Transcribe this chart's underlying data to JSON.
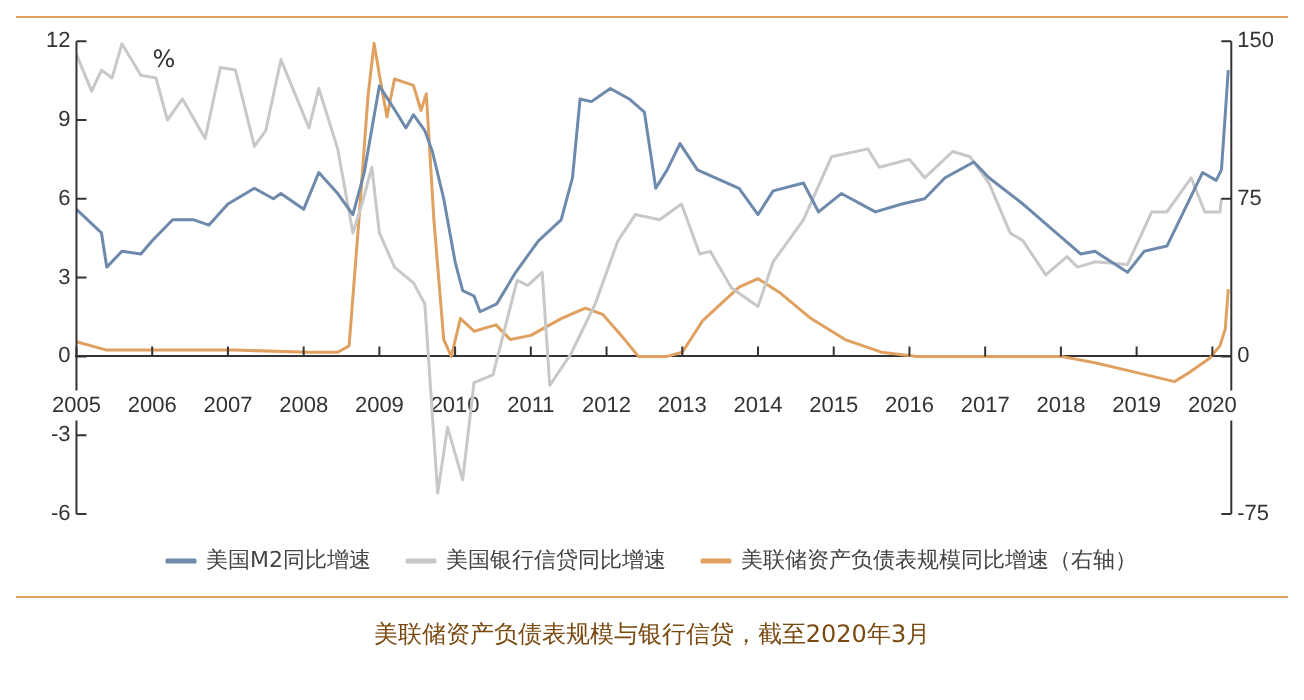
{
  "chart_data": {
    "type": "line",
    "ylabel": "%",
    "annotations": [
      "美联储资产负债表规模与银行信贷，截至2020年3月"
    ],
    "xlim": [
      2005,
      2020.25
    ],
    "xticks": [
      2005,
      2006,
      2007,
      2008,
      2009,
      2010,
      2011,
      2012,
      2013,
      2014,
      2015,
      2016,
      2017,
      2018,
      2019,
      2020
    ],
    "ylim": [
      -6,
      12
    ],
    "yticks": [
      -6,
      -3,
      0,
      3,
      6,
      9,
      12
    ],
    "y2lim": [
      -75,
      150
    ],
    "y2ticks": [
      -75,
      0,
      75,
      150
    ],
    "grid": false,
    "legend": "bottom",
    "marker": "none",
    "line_style": "solid",
    "series": [
      {
        "name": "美国M2同比增速",
        "color": "#6d89ab",
        "x": [
          2005.0,
          2005.33,
          2005.4,
          2005.6,
          2005.85,
          2006.0,
          2006.27,
          2006.55,
          2006.75,
          2007.0,
          2007.35,
          2007.6,
          2007.7,
          2008.0,
          2008.2,
          2008.45,
          2008.65,
          2008.8,
          2009.0,
          2009.2,
          2009.35,
          2009.45,
          2009.6,
          2009.7,
          2009.85,
          2010.0,
          2010.1,
          2010.25,
          2010.33,
          2010.55,
          2010.8,
          2011.1,
          2011.4,
          2011.55,
          2011.65,
          2011.8,
          2012.05,
          2012.3,
          2012.5,
          2012.65,
          2012.8,
          2012.97,
          2013.2,
          2013.75,
          2014.0,
          2014.2,
          2014.6,
          2014.8,
          2015.1,
          2015.55,
          2015.9,
          2016.2,
          2016.47,
          2016.85,
          2017.05,
          2017.5,
          2017.9,
          2018.26,
          2018.45,
          2018.88,
          2019.1,
          2019.4,
          2019.87,
          2020.05,
          2020.12,
          2020.21
        ],
        "values": [
          5.6,
          4.7,
          3.4,
          4.0,
          3.9,
          4.4,
          5.2,
          5.2,
          5.0,
          5.8,
          6.4,
          6.0,
          6.2,
          5.6,
          7.0,
          6.2,
          5.4,
          7.0,
          10.3,
          9.4,
          8.7,
          9.2,
          8.6,
          7.8,
          6.0,
          3.6,
          2.5,
          2.3,
          1.7,
          2.0,
          3.2,
          4.4,
          5.2,
          6.8,
          9.8,
          9.7,
          10.2,
          9.8,
          9.3,
          6.4,
          7.1,
          8.1,
          7.1,
          6.4,
          5.4,
          6.3,
          6.6,
          5.5,
          6.2,
          5.5,
          5.8,
          6.0,
          6.8,
          7.4,
          6.8,
          5.8,
          4.8,
          3.9,
          4.0,
          3.2,
          4.0,
          4.2,
          7.0,
          6.7,
          7.1,
          10.9
        ]
      },
      {
        "name": "美国银行信贷同比增速",
        "color": "#c8c8c8",
        "x": [
          2005.0,
          2005.2,
          2005.33,
          2005.47,
          2005.6,
          2005.85,
          2006.05,
          2006.2,
          2006.4,
          2006.7,
          2006.9,
          2007.1,
          2007.35,
          2007.5,
          2007.7,
          2008.07,
          2008.2,
          2008.45,
          2008.65,
          2008.77,
          2008.9,
          2009.0,
          2009.2,
          2009.45,
          2009.6,
          2009.77,
          2009.9,
          2010.1,
          2010.25,
          2010.5,
          2010.82,
          2010.96,
          2011.15,
          2011.25,
          2011.53,
          2011.85,
          2012.15,
          2012.38,
          2012.7,
          2012.99,
          2013.23,
          2013.37,
          2013.65,
          2014.0,
          2014.2,
          2014.6,
          2014.97,
          2015.45,
          2015.6,
          2016.0,
          2016.2,
          2016.57,
          2016.8,
          2017.05,
          2017.33,
          2017.5,
          2017.8,
          2018.08,
          2018.22,
          2018.45,
          2018.88,
          2019.2,
          2019.4,
          2019.72,
          2019.9,
          2020.1,
          2020.12
        ],
        "values": [
          11.5,
          10.1,
          10.9,
          10.6,
          11.9,
          10.7,
          10.6,
          9.0,
          9.8,
          8.3,
          11.0,
          10.9,
          8.0,
          8.6,
          11.3,
          8.7,
          10.2,
          7.9,
          4.7,
          5.8,
          7.2,
          4.7,
          3.4,
          2.8,
          2.0,
          -5.2,
          -2.7,
          -4.7,
          -1.0,
          -0.7,
          2.9,
          2.7,
          3.2,
          -1.1,
          0.1,
          2.0,
          4.4,
          5.4,
          5.2,
          5.8,
          3.9,
          4.0,
          2.6,
          1.9,
          3.6,
          5.2,
          7.6,
          7.9,
          7.2,
          7.5,
          6.8,
          7.8,
          7.6,
          6.6,
          4.7,
          4.4,
          3.1,
          3.8,
          3.4,
          3.6,
          3.5,
          5.5,
          5.5,
          6.8,
          5.5,
          5.5,
          6.0
        ]
      },
      {
        "name": "美联储资产负债表规模同比增速（右轴）",
        "color": "#e0a060",
        "axis": "y2",
        "x": [
          2005.0,
          2005.4,
          2006.2,
          2007.1,
          2008.07,
          2008.45,
          2008.6,
          2008.73,
          2008.85,
          2008.93,
          2009.0,
          2009.1,
          2009.2,
          2009.45,
          2009.55,
          2009.62,
          2009.72,
          2009.85,
          2009.95,
          2010.07,
          2010.25,
          2010.54,
          2010.73,
          2011.0,
          2011.4,
          2011.72,
          2011.95,
          2012.24,
          2012.42,
          2012.8,
          2013.0,
          2013.27,
          2013.75,
          2014.0,
          2014.3,
          2014.7,
          2015.15,
          2015.63,
          2016.1,
          2018.0,
          2018.45,
          2018.92,
          2019.5,
          2019.68,
          2019.96,
          2020.1,
          2020.17,
          2020.21
        ],
        "values": [
          7,
          3,
          3,
          3,
          2,
          2,
          5,
          65,
          124,
          149,
          134,
          114,
          132,
          129,
          117,
          125,
          65,
          8,
          0,
          18,
          12,
          15,
          8,
          10,
          18,
          23,
          20,
          8,
          0,
          0,
          2,
          17,
          33,
          37,
          30,
          18,
          8,
          2,
          0,
          0,
          -3,
          -7,
          -12,
          -8,
          -1,
          5,
          13,
          32
        ]
      }
    ]
  }
}
